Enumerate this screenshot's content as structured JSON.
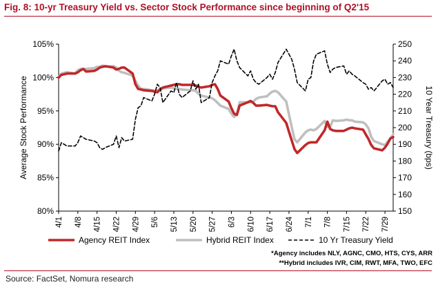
{
  "title": "Fig. 8: 10-yr Treasury Yield vs. Sector Stock Performance since beginning of Q2'15",
  "source": "Source: FactSet, Nomura research",
  "footnotes": [
    "*Agency includes NLY, AGNC, CMO, HTS, CYS, ARR",
    "**Hybrid includes IVR, CIM, RWT, MFA, TWO, EFC"
  ],
  "colors": {
    "title": "#b00f23",
    "agency": "#c0282a",
    "hybrid": "#bfbfbf",
    "treasury": "#000000"
  },
  "chart_data": {
    "type": "line",
    "xlabel": "",
    "ylabel": "Average Stock Performance",
    "y2label": "10 Year Treasury (bps)",
    "ylim": [
      80,
      105
    ],
    "y2lim": [
      150,
      250
    ],
    "yticks": [
      "80%",
      "85%",
      "90%",
      "95%",
      "100%",
      "105%"
    ],
    "y2ticks": [
      "150",
      "160",
      "170",
      "180",
      "190",
      "200",
      "210",
      "220",
      "230",
      "240",
      "250"
    ],
    "x_tick_labels": [
      "4/1",
      "4/8",
      "4/15",
      "4/22",
      "4/29",
      "5/6",
      "5/13",
      "5/20",
      "5/27",
      "6/3",
      "6/10",
      "6/17",
      "6/24",
      "7/1",
      "7/8",
      "7/15",
      "7/22",
      "7/29"
    ],
    "x_days": [
      0,
      1,
      2,
      3,
      6,
      7,
      8,
      9,
      10,
      13,
      14,
      15,
      16,
      17,
      20,
      21,
      22,
      23,
      24,
      27,
      28,
      29,
      30,
      31,
      34,
      35,
      36,
      37,
      38,
      41,
      42,
      43,
      44,
      45,
      48,
      49,
      50,
      51,
      52,
      55,
      56,
      57,
      58,
      59,
      62,
      63,
      64,
      65,
      66,
      69,
      70,
      71,
      72,
      73,
      76,
      77,
      78,
      79,
      80,
      83,
      84,
      85,
      86,
      87,
      90,
      91,
      92,
      93,
      94,
      97,
      98,
      99,
      100,
      101,
      104,
      105,
      106,
      107,
      108,
      111,
      112,
      113,
      114,
      115,
      118,
      119,
      120,
      121,
      122
    ],
    "legend_position": "bottom",
    "series": [
      {
        "name": "Agency REIT Index",
        "axis": "left",
        "values": [
          100.0,
          100.4,
          100.5,
          100.6,
          100.6,
          100.8,
          101.1,
          101.3,
          100.9,
          101.0,
          101.2,
          101.5,
          101.6,
          101.7,
          101.5,
          101.2,
          101.3,
          101.5,
          101.5,
          100.6,
          99.0,
          98.3,
          98.2,
          98.1,
          98.0,
          97.9,
          97.8,
          98.2,
          98.5,
          98.8,
          98.9,
          99.0,
          99.0,
          98.9,
          98.9,
          98.9,
          98.8,
          98.6,
          98.5,
          98.7,
          98.9,
          99.0,
          98.3,
          97.3,
          96.4,
          95.4,
          94.6,
          94.4,
          95.8,
          96.3,
          96.5,
          96.2,
          95.8,
          95.8,
          95.9,
          95.8,
          95.7,
          95.7,
          94.8,
          93.2,
          91.9,
          90.6,
          89.3,
          88.7,
          89.9,
          90.2,
          90.3,
          90.3,
          90.3,
          92.1,
          93.4,
          92.3,
          92.1,
          92.0,
          92.0,
          92.2,
          92.4,
          92.5,
          92.4,
          92.2,
          91.5,
          90.8,
          89.9,
          89.4,
          89.1,
          89.5,
          90.1,
          90.9,
          91.1
        ]
      },
      {
        "name": "Hybrid REIT Index",
        "axis": "left",
        "values": [
          100.1,
          100.6,
          100.7,
          100.8,
          100.6,
          101.1,
          101.3,
          101.2,
          101.3,
          101.4,
          101.6,
          101.6,
          101.8,
          101.6,
          101.7,
          101.5,
          101.0,
          100.8,
          100.7,
          100.3,
          99.5,
          98.8,
          98.3,
          98.3,
          98.1,
          98.0,
          98.1,
          98.2,
          98.4,
          98.5,
          98.4,
          98.3,
          98.3,
          98.2,
          98.1,
          98.1,
          98.0,
          97.6,
          97.3,
          97.0,
          96.9,
          96.6,
          96.2,
          95.8,
          95.3,
          94.6,
          94.1,
          94.5,
          96.3,
          96.3,
          96.3,
          96.4,
          96.8,
          97.0,
          97.2,
          97.6,
          97.9,
          98.0,
          97.8,
          96.4,
          94.5,
          92.6,
          90.8,
          90.3,
          91.8,
          92.1,
          92.2,
          92.1,
          92.3,
          93.5,
          92.6,
          92.6,
          93.6,
          93.5,
          93.6,
          93.7,
          93.6,
          93.6,
          93.4,
          93.3,
          93.0,
          92.4,
          91.1,
          90.5,
          90.0,
          89.9,
          90.4,
          90.8,
          91.5
        ]
      },
      {
        "name": "10 Yr Treasury Yield",
        "axis": "right",
        "values": [
          186,
          191,
          190,
          189,
          189,
          191,
          195,
          194,
          193,
          192,
          191,
          188,
          187,
          188,
          190,
          195,
          188,
          194,
          192,
          193,
          205,
          212,
          213,
          218,
          216,
          220,
          226,
          224,
          215,
          222,
          221,
          227,
          220,
          218,
          222,
          228,
          223,
          226,
          215,
          218,
          227,
          231,
          234,
          240,
          238,
          243,
          247,
          240,
          236,
          231,
          234,
          229,
          227,
          226,
          230,
          232,
          229,
          233,
          239,
          247,
          244,
          241,
          235,
          227,
          222,
          229,
          230,
          240,
          244,
          246,
          238,
          233,
          235,
          236,
          237,
          232,
          234,
          232,
          231,
          227,
          226,
          223,
          224,
          222,
          228,
          229,
          226,
          227,
          224
        ]
      }
    ]
  }
}
